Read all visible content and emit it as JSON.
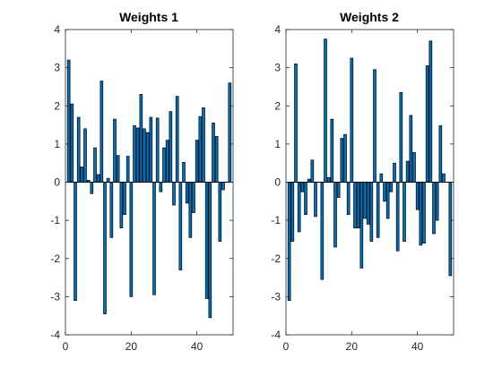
{
  "chart_data": [
    {
      "type": "bar",
      "title": "Weights 1",
      "xlabel": "",
      "ylabel": "",
      "xlim": [
        0,
        51
      ],
      "ylim": [
        -4,
        4
      ],
      "xticks": [
        0,
        20,
        40
      ],
      "yticks": [
        -4,
        -3,
        -2,
        -1,
        0,
        1,
        2,
        3,
        4
      ],
      "grid": false,
      "bar_color": "#0072BD",
      "edge_color": "#000000",
      "x": [
        1,
        2,
        3,
        4,
        5,
        6,
        7,
        8,
        9,
        10,
        11,
        12,
        13,
        14,
        15,
        16,
        17,
        18,
        19,
        20,
        21,
        22,
        23,
        24,
        25,
        26,
        27,
        28,
        29,
        30,
        31,
        32,
        33,
        34,
        35,
        36,
        37,
        38,
        39,
        40,
        41,
        42,
        43,
        44,
        45,
        46,
        47,
        48,
        49,
        50
      ],
      "values": [
        3.2,
        2.05,
        -3.1,
        1.7,
        0.4,
        1.4,
        0.05,
        -0.3,
        0.9,
        0.2,
        2.65,
        -3.45,
        0.1,
        -1.45,
        1.65,
        0.7,
        -1.2,
        -0.85,
        0.68,
        -3.0,
        1.48,
        1.42,
        2.3,
        1.4,
        1.3,
        1.7,
        -2.95,
        1.68,
        -0.25,
        0.9,
        1.1,
        1.85,
        -0.6,
        2.25,
        -2.3,
        0.52,
        -0.55,
        -1.45,
        -0.8,
        1.1,
        1.72,
        1.95,
        -3.05,
        -3.55,
        1.55,
        1.2,
        -1.55,
        -0.2,
        0.0,
        2.6
      ]
    },
    {
      "type": "bar",
      "title": "Weights 2",
      "xlabel": "",
      "ylabel": "",
      "xlim": [
        0,
        51
      ],
      "ylim": [
        -4,
        4
      ],
      "xticks": [
        0,
        20,
        40
      ],
      "yticks": [
        -4,
        -3,
        -2,
        -1,
        0,
        1,
        2,
        3,
        4
      ],
      "grid": false,
      "bar_color": "#0072BD",
      "edge_color": "#000000",
      "x": [
        1,
        2,
        3,
        4,
        5,
        6,
        7,
        8,
        9,
        10,
        11,
        12,
        13,
        14,
        15,
        16,
        17,
        18,
        19,
        20,
        21,
        22,
        23,
        24,
        25,
        26,
        27,
        28,
        29,
        30,
        31,
        32,
        33,
        34,
        35,
        36,
        37,
        38,
        39,
        40,
        41,
        42,
        43,
        44,
        45,
        46,
        47,
        48,
        49,
        50
      ],
      "values": [
        -3.1,
        -1.55,
        3.1,
        -1.3,
        -0.25,
        -0.85,
        0.08,
        0.58,
        -0.9,
        0.0,
        -2.55,
        3.75,
        0.12,
        1.65,
        -1.7,
        -0.4,
        1.15,
        1.25,
        -0.85,
        3.25,
        -1.2,
        -1.2,
        -2.25,
        -0.95,
        -1.1,
        -1.55,
        2.95,
        -1.45,
        0.22,
        -0.5,
        -0.95,
        -0.25,
        0.5,
        -1.8,
        2.35,
        -1.55,
        0.55,
        1.75,
        0.78,
        -0.72,
        -1.65,
        -1.6,
        3.05,
        3.7,
        -1.35,
        -1.0,
        1.48,
        0.22,
        0.0,
        -2.45
      ]
    }
  ]
}
